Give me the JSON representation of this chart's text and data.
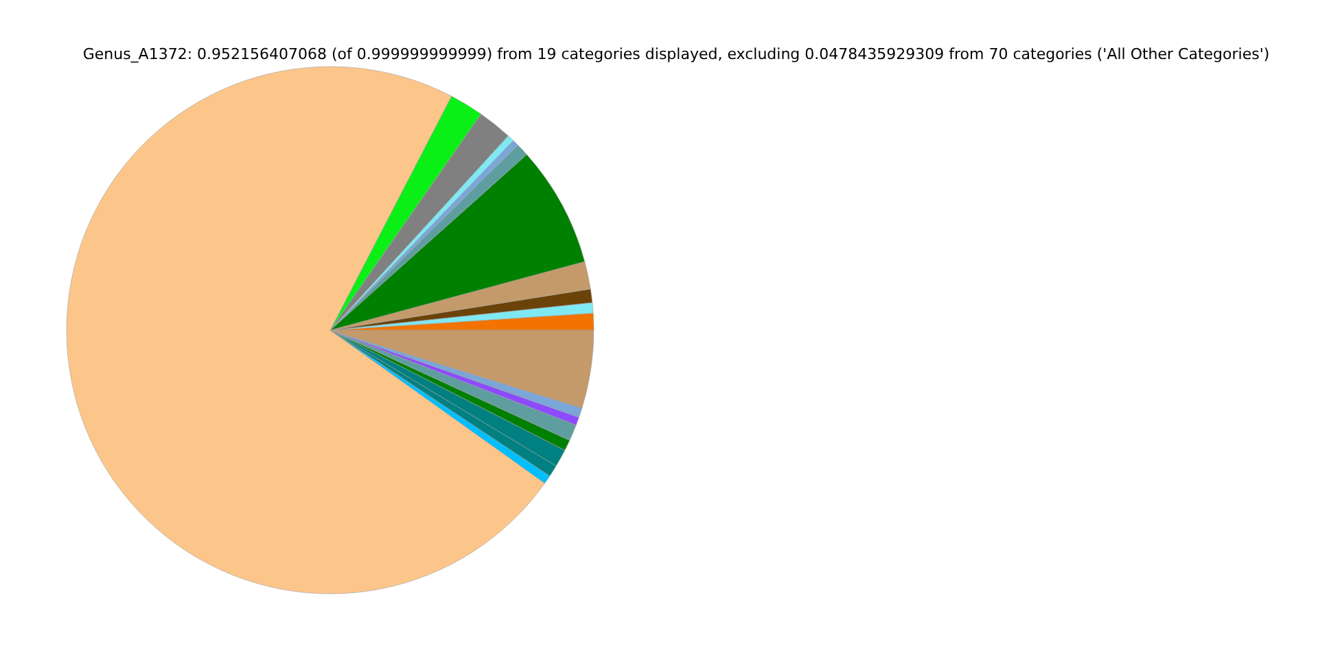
{
  "chart_data": {
    "type": "pie",
    "title": "Genus_A1372: 0.952156407068 (of 0.999999999999) from 19 categories displayed, excluding 0.0478435929309 from 70 categories ('All Other Categories')",
    "categories": [
      null,
      null,
      null,
      null,
      null,
      null,
      null,
      null,
      null,
      null,
      null,
      null,
      null,
      null,
      null,
      null,
      null,
      null,
      null
    ],
    "values": [
      1.03,
      0.64,
      0.83,
      1.69,
      7.42,
      0.78,
      0.39,
      0.42,
      2.11,
      2.08,
      72.75,
      0.53,
      0.72,
      1.08,
      0.67,
      1.0,
      0.5,
      0.58,
      4.78
    ],
    "colors": [
      "#f27300",
      "#80e8f2",
      "#6b4309",
      "#c49a6a",
      "#008000",
      "#5f9ea0",
      "#7aa6d8",
      "#80e8f2",
      "#808080",
      "#0af016",
      "#fcc68a",
      "#00bfff",
      "#008080",
      "#008080",
      "#008000",
      "#5f9ea0",
      "#8c4bff",
      "#7aa6d8",
      "#c49a6a"
    ]
  }
}
